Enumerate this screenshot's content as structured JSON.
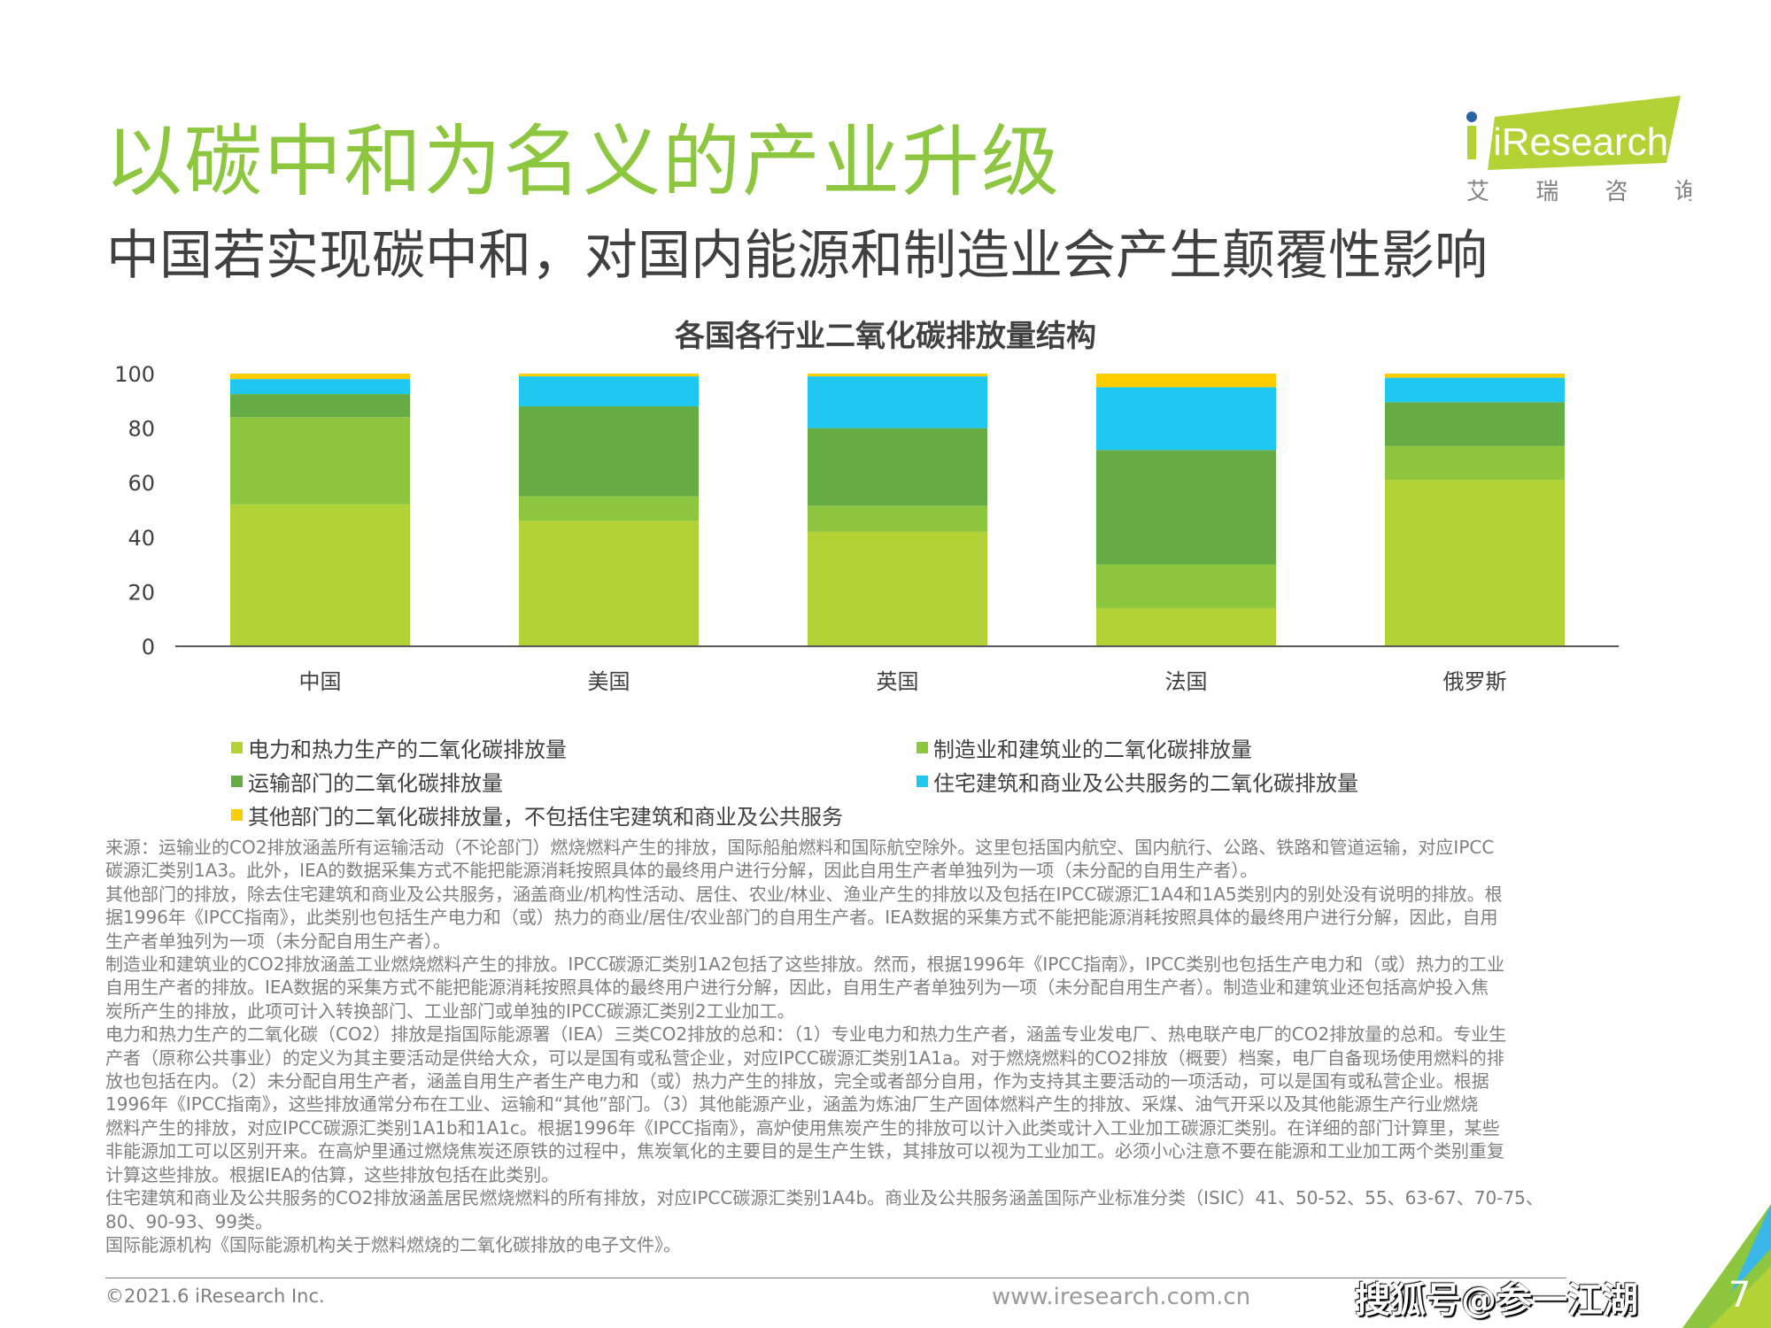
{
  "header": {
    "title": "以碳中和为名义的产业升级",
    "subtitle": "中国若实现碳中和，对国内能源和制造业会产生颠覆性影响"
  },
  "logo": {
    "brand": "iResearch",
    "cn": "艾 瑞 咨 询"
  },
  "colors": {
    "title_green": "#8dc63f",
    "power": "#b2d235",
    "manufacturing": "#8dc63f",
    "transport": "#66ac45",
    "residential": "#1ec8f0",
    "other": "#ffcc00"
  },
  "chart_data": {
    "type": "bar",
    "stacked": true,
    "title": "各国各行业二氧化碳排放量结构",
    "categories": [
      "中国",
      "美国",
      "英国",
      "法国",
      "俄罗斯"
    ],
    "ylim": [
      0,
      100
    ],
    "yticks": [
      "0",
      "20",
      "40",
      "60",
      "80",
      "100"
    ],
    "grid": false,
    "legend_position": "bottom",
    "series": [
      {
        "name": "电力和热力生产的二氧化碳排放量",
        "color": "#b2d235",
        "values": [
          52,
          46,
          42,
          14,
          61
        ]
      },
      {
        "name": "制造业和建筑业的二氧化碳排放量",
        "color": "#8dc63f",
        "values": [
          32,
          9,
          9.5,
          16,
          12.5
        ]
      },
      {
        "name": "运输部门的二氧化碳排放量",
        "color": "#66ac45",
        "values": [
          8.5,
          33,
          28.5,
          42,
          16
        ]
      },
      {
        "name": "住宅建筑和商业及公共服务的二氧化碳排放量",
        "color": "#1ec8f0",
        "values": [
          5.5,
          11,
          19,
          23,
          9
        ]
      },
      {
        "name": "其他部门的二氧化碳排放量，不包括住宅建筑和商业及公共服务",
        "color": "#ffcc00",
        "values": [
          2,
          1,
          1,
          5,
          1.5
        ]
      }
    ]
  },
  "notes": [
    "来源：运输业的CO2排放涵盖所有运输活动（不论部门）燃烧燃料产生的排放，国际船舶燃料和国际航空除外。这里包括国内航空、国内航行、公路、铁路和管道运输，对应IPCC",
    "碳源汇类别1A3。此外，IEA的数据采集方式不能把能源消耗按照具体的最终用户进行分解，因此自用生产者单独列为一项（未分配的自用生产者）。",
    "其他部门的排放，除去住宅建筑和商业及公共服务，涵盖商业/机构性活动、居住、农业/林业、渔业产生的排放以及包括在IPCC碳源汇1A4和1A5类别内的别处没有说明的排放。根",
    "据1996年《IPCC指南》，此类别也包括生产电力和（或）热力的商业/居住/农业部门的自用生产者。IEA数据的采集方式不能把能源消耗按照具体的最终用户进行分解，因此，自用",
    "生产者单独列为一项（未分配自用生产者）。",
    "制造业和建筑业的CO2排放涵盖工业燃烧燃料产生的排放。IPCC碳源汇类别1A2包括了这些排放。然而，根据1996年《IPCC指南》，IPCC类别也包括生产电力和（或）热力的工业",
    "自用生产者的排放。IEA数据的采集方式不能把能源消耗按照具体的最终用户进行分解，因此，自用生产者单独列为一项（未分配自用生产者）。制造业和建筑业还包括高炉投入焦",
    "炭所产生的排放，此项可计入转换部门、工业部门或单独的IPCC碳源汇类别2工业加工。",
    "电力和热力生产的二氧化碳（CO2）排放是指国际能源署（IEA）三类CO2排放的总和：（1）专业电力和热力生产者，涵盖专业发电厂、热电联产电厂的CO2排放量的总和。专业生",
    "产者（原称公共事业）的定义为其主要活动是供给大众，可以是国有或私营企业，对应IPCC碳源汇类别1A1a。对于燃烧燃料的CO2排放（概要）档案，电厂自备现场使用燃料的排",
    "放也包括在内。（2）未分配自用生产者，涵盖自用生产者生产电力和（或）热力产生的排放，完全或者部分自用，作为支持其主要活动的一项活动，可以是国有或私营企业。根据",
    "1996年《IPCC指南》，这些排放通常分布在工业、运输和“其他”部门。（3）其他能源产业，涵盖为炼油厂生产固体燃料产生的排放、采煤、油气开采以及其他能源生产行业燃烧",
    "燃料产生的排放，对应IPCC碳源汇类别1A1b和1A1c。根据1996年《IPCC指南》，高炉使用焦炭产生的排放可以计入此类或计入工业加工碳源汇类别。在详细的部门计算里，某些",
    "非能源加工可以区别开来。在高炉里通过燃烧焦炭还原铁的过程中，焦炭氧化的主要目的是生产生铁，其排放可以视为工业加工。必须小心注意不要在能源和工业加工两个类别重复",
    "计算这些排放。根据IEA的估算，这些排放包括在此类别。",
    "住宅建筑和商业及公共服务的CO2排放涵盖居民燃烧燃料的所有排放，对应IPCC碳源汇类别1A4b。商业及公共服务涵盖国际产业标准分类（ISIC）41、50-52、55、63-67、70-75、",
    "80、90-93、99类。",
    "国际能源机构《国际能源机构关于燃料燃烧的二氧化碳排放的电子文件》。"
  ],
  "footer": {
    "copyright": "©2021.6 iResearch Inc.",
    "site": "www.iresearch.com.cn",
    "watermark": "搜狐号@参一江湖",
    "page": "7"
  }
}
